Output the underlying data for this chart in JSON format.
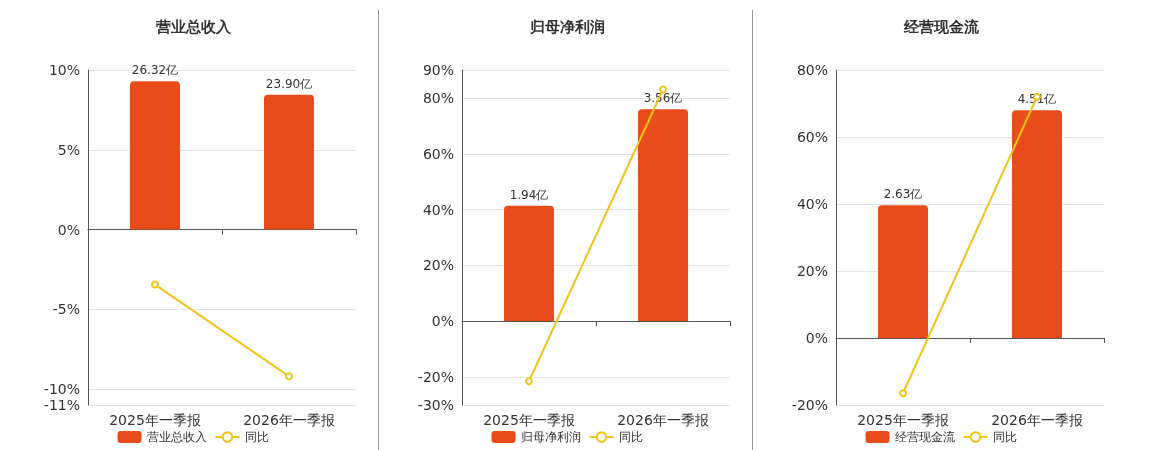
{
  "chart_data": [
    {
      "type": "bar",
      "title": "营业总收入",
      "categories": [
        "2025年一季报",
        "2026年一季报"
      ],
      "ylim": [
        -11,
        10
      ],
      "yticks": [
        {
          "value": -11,
          "label": "-11%"
        },
        {
          "value": -10,
          "label": "-10%"
        },
        {
          "value": -5,
          "label": "-5%"
        },
        {
          "value": 0,
          "label": "0%"
        },
        {
          "value": 5,
          "label": "5%"
        },
        {
          "value": 10,
          "label": "10%"
        }
      ],
      "y2lim": [
        -31.1,
        28.3
      ],
      "grid": "y",
      "legend": "bottom",
      "marker": "circle",
      "series": [
        {
          "name": "营业总收入",
          "axis": "y2",
          "color": "#e84c1a",
          "values": [
            26.32,
            23.9
          ],
          "value_labels": [
            "26.32亿",
            "23.90亿"
          ]
        },
        {
          "name": "同比",
          "type": "line",
          "color": "#f0c419",
          "values": [
            -3.45,
            -9.2
          ]
        }
      ]
    },
    {
      "type": "bar",
      "title": "归母净利润",
      "categories": [
        "2025年一季报",
        "2026年一季报"
      ],
      "ylim": [
        -30,
        90
      ],
      "yticks": [
        {
          "value": -30,
          "label": "-30%"
        },
        {
          "value": -20,
          "label": "-20%"
        },
        {
          "value": 0,
          "label": "0%"
        },
        {
          "value": 20,
          "label": "20%"
        },
        {
          "value": 40,
          "label": "40%"
        },
        {
          "value": 60,
          "label": "60%"
        },
        {
          "value": 80,
          "label": "80%"
        },
        {
          "value": 90,
          "label": "90%"
        }
      ],
      "y2lim": [
        -1.41,
        4.22
      ],
      "grid": "y",
      "legend": "bottom",
      "marker": "circle",
      "series": [
        {
          "name": "归母净利润",
          "axis": "y2",
          "color": "#e84c1a",
          "values": [
            1.94,
            3.56
          ],
          "value_labels": [
            "1.94亿",
            "3.56亿"
          ]
        },
        {
          "name": "同比",
          "type": "line",
          "color": "#f0c419",
          "values": [
            -21.5,
            83
          ]
        }
      ]
    },
    {
      "type": "bar",
      "title": "经营现金流",
      "categories": [
        "2025年一季报",
        "2026年一季报"
      ],
      "ylim": [
        -20,
        80
      ],
      "yticks": [
        {
          "value": -20,
          "label": "-20%"
        },
        {
          "value": 0,
          "label": "0%"
        },
        {
          "value": 20,
          "label": "20%"
        },
        {
          "value": 40,
          "label": "40%"
        },
        {
          "value": 60,
          "label": "60%"
        },
        {
          "value": 80,
          "label": "80%"
        }
      ],
      "y2lim": [
        -1.33,
        5.31
      ],
      "grid": "y",
      "legend": "bottom",
      "marker": "circle",
      "series": [
        {
          "name": "经营现金流",
          "axis": "y2",
          "color": "#e84c1a",
          "values": [
            2.63,
            4.51
          ],
          "value_labels": [
            "2.63亿",
            "4.51亿"
          ]
        },
        {
          "name": "同比",
          "type": "line",
          "color": "#f0c419",
          "values": [
            -16.5,
            72
          ]
        }
      ]
    }
  ]
}
